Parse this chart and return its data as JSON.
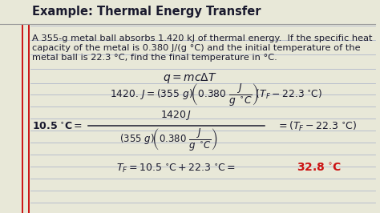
{
  "title": "Example: Thermal Energy Transfer",
  "p1": "A 355-g metal ball absorbs 1.420 kJ of thermal energy.  If the specific heat",
  "p2": "capacity of the metal is 0.380 J/(g °C) and the initial temperature of the",
  "p3": "metal ball is 22.3 °C, find the final temperature in °C.",
  "bg_color": "#e8e8d8",
  "line_color": "#b0b8cc",
  "red1": "#cc1111",
  "red2": "#cc1111",
  "dark": "#1a1a2e",
  "answer_color": "#cc1111",
  "title_fs": 10.5,
  "body_fs": 8.2,
  "eq_fs": 9.0
}
